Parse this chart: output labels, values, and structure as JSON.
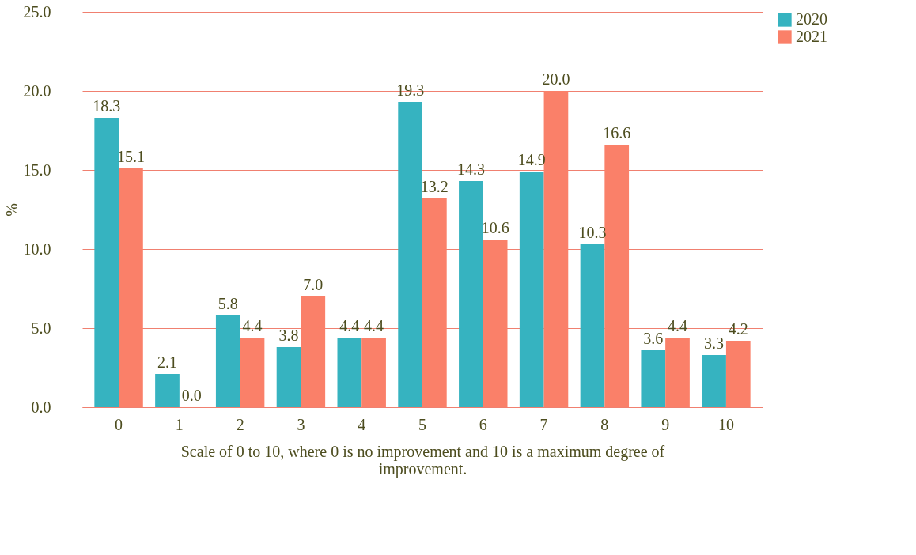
{
  "chart_data": {
    "type": "bar",
    "xlabel": "Scale of 0 to 10, where 0 is no improvement and 10 is a maximum degree of improvement.",
    "ylabel": "%",
    "categories": [
      "0",
      "1",
      "2",
      "3",
      "4",
      "5",
      "6",
      "7",
      "8",
      "9",
      "10"
    ],
    "series": [
      {
        "name": "2020",
        "color": "#36b3c0",
        "values": [
          18.3,
          2.1,
          5.8,
          3.8,
          4.4,
          19.3,
          14.3,
          14.9,
          10.3,
          3.6,
          3.3
        ],
        "value_labels": [
          "18.3",
          "2.1",
          "5.8",
          "3.8",
          "4.4",
          "19.3",
          "14.3",
          "14.9",
          "10.3",
          "3.6",
          "3.3"
        ]
      },
      {
        "name": "2021",
        "color": "#fa8069",
        "values": [
          15.1,
          0.0,
          4.4,
          7.0,
          4.4,
          13.2,
          10.6,
          20.0,
          16.6,
          4.4,
          4.2
        ],
        "value_labels": [
          "15.1",
          "0.0",
          "4.4",
          "7.0",
          "4.4",
          "13.2",
          "10.6",
          "20.0",
          "16.6",
          "4.4",
          "4.2"
        ]
      }
    ],
    "ylim": [
      0,
      25
    ],
    "yticks": [
      {
        "value": 0,
        "label": "0.0"
      },
      {
        "value": 5,
        "label": "5.0"
      },
      {
        "value": 10,
        "label": "10.0"
      },
      {
        "value": 15,
        "label": "15.0"
      },
      {
        "value": 20,
        "label": "20.0"
      },
      {
        "value": 25,
        "label": "25.0"
      }
    ],
    "grid": "y",
    "legend": "right"
  }
}
